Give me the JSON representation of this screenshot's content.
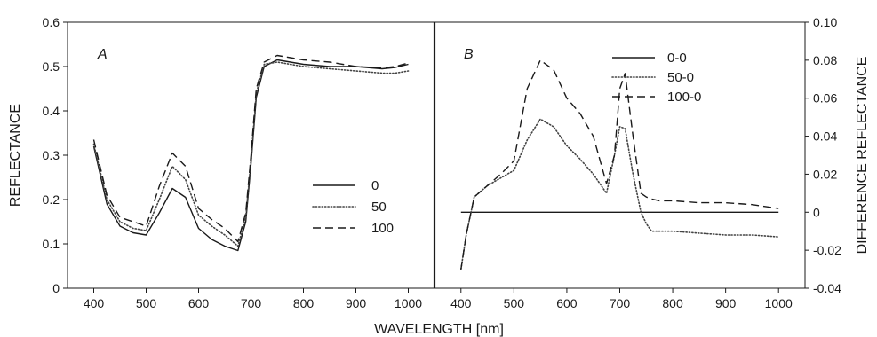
{
  "chart_data": [
    {
      "type": "line",
      "panel_label": "A",
      "ylabel": "REFLECTANCE",
      "xlim": [
        350,
        1050
      ],
      "ylim": [
        0,
        0.6
      ],
      "xticks": [
        400,
        500,
        600,
        700,
        800,
        900,
        1000
      ],
      "yticks": [
        0,
        0.1,
        0.2,
        0.3,
        0.4,
        0.5,
        0.6
      ],
      "legend_position": "center-right",
      "series": [
        {
          "name": "0",
          "style": "solid",
          "color": "#1a1a1a",
          "x": [
            400,
            425,
            450,
            475,
            500,
            525,
            550,
            575,
            600,
            625,
            650,
            675,
            690,
            700,
            710,
            725,
            750,
            775,
            800,
            850,
            900,
            950,
            975,
            1000
          ],
          "y": [
            0.32,
            0.19,
            0.14,
            0.125,
            0.12,
            0.17,
            0.225,
            0.205,
            0.135,
            0.11,
            0.095,
            0.085,
            0.15,
            0.28,
            0.43,
            0.5,
            0.515,
            0.51,
            0.505,
            0.5,
            0.5,
            0.495,
            0.498,
            0.505
          ]
        },
        {
          "name": "50",
          "style": "dotted",
          "color": "#444444",
          "x": [
            400,
            425,
            450,
            475,
            500,
            525,
            550,
            575,
            600,
            625,
            650,
            675,
            690,
            700,
            710,
            725,
            750,
            775,
            800,
            850,
            900,
            950,
            975,
            1000
          ],
          "y": [
            0.325,
            0.2,
            0.15,
            0.135,
            0.13,
            0.2,
            0.275,
            0.245,
            0.165,
            0.14,
            0.12,
            0.095,
            0.16,
            0.29,
            0.44,
            0.505,
            0.51,
            0.505,
            0.5,
            0.495,
            0.49,
            0.485,
            0.485,
            0.49
          ]
        },
        {
          "name": "100",
          "style": "dashed",
          "color": "#1a1a1a",
          "x": [
            400,
            425,
            450,
            475,
            500,
            525,
            550,
            575,
            600,
            625,
            650,
            675,
            690,
            700,
            710,
            725,
            750,
            775,
            800,
            850,
            900,
            950,
            975,
            1000
          ],
          "y": [
            0.335,
            0.21,
            0.16,
            0.15,
            0.14,
            0.23,
            0.305,
            0.275,
            0.18,
            0.155,
            0.135,
            0.105,
            0.17,
            0.3,
            0.45,
            0.51,
            0.525,
            0.52,
            0.515,
            0.51,
            0.5,
            0.497,
            0.5,
            0.508
          ]
        }
      ]
    },
    {
      "type": "line",
      "panel_label": "B",
      "ylabel": "DIFFERENCE REFLECTANCE",
      "xlim": [
        350,
        1050
      ],
      "ylim": [
        -0.04,
        0.1
      ],
      "xticks": [
        400,
        500,
        600,
        700,
        800,
        900,
        1000
      ],
      "yticks": [
        -0.04,
        -0.02,
        0,
        0.02,
        0.04,
        0.06,
        0.08,
        0.1
      ],
      "ytick_labels": [
        "-0.04",
        "-0.02",
        "0",
        "0.02",
        "0.04",
        "0.06",
        "0.08",
        "0.10"
      ],
      "legend_position": "top-right",
      "series": [
        {
          "name": "0-0",
          "style": "solid",
          "color": "#1a1a1a",
          "x": [
            400,
            1000
          ],
          "y": [
            0,
            0
          ]
        },
        {
          "name": "50-0",
          "style": "dotted",
          "color": "#444444",
          "x": [
            400,
            410,
            425,
            450,
            475,
            500,
            525,
            550,
            575,
            600,
            625,
            650,
            675,
            690,
            700,
            710,
            725,
            740,
            750,
            760,
            775,
            800,
            850,
            900,
            950,
            1000
          ],
          "y": [
            -0.03,
            -0.012,
            0.008,
            0.014,
            0.018,
            0.022,
            0.038,
            0.049,
            0.045,
            0.035,
            0.028,
            0.02,
            0.01,
            0.03,
            0.045,
            0.044,
            0.02,
            0.0,
            -0.006,
            -0.01,
            -0.01,
            -0.01,
            -0.011,
            -0.012,
            -0.012,
            -0.013
          ]
        },
        {
          "name": "100-0",
          "style": "dashed",
          "color": "#1a1a1a",
          "x": [
            400,
            410,
            425,
            450,
            475,
            500,
            525,
            550,
            575,
            600,
            625,
            650,
            675,
            690,
            700,
            710,
            725,
            740,
            750,
            760,
            775,
            800,
            850,
            900,
            950,
            1000
          ],
          "y": [
            -0.03,
            -0.012,
            0.008,
            0.014,
            0.02,
            0.027,
            0.065,
            0.08,
            0.075,
            0.06,
            0.052,
            0.04,
            0.015,
            0.03,
            0.065,
            0.073,
            0.04,
            0.01,
            0.008,
            0.007,
            0.006,
            0.006,
            0.005,
            0.005,
            0.004,
            0.002
          ]
        }
      ]
    }
  ],
  "xlabel": "WAVELENGTH [nm]"
}
